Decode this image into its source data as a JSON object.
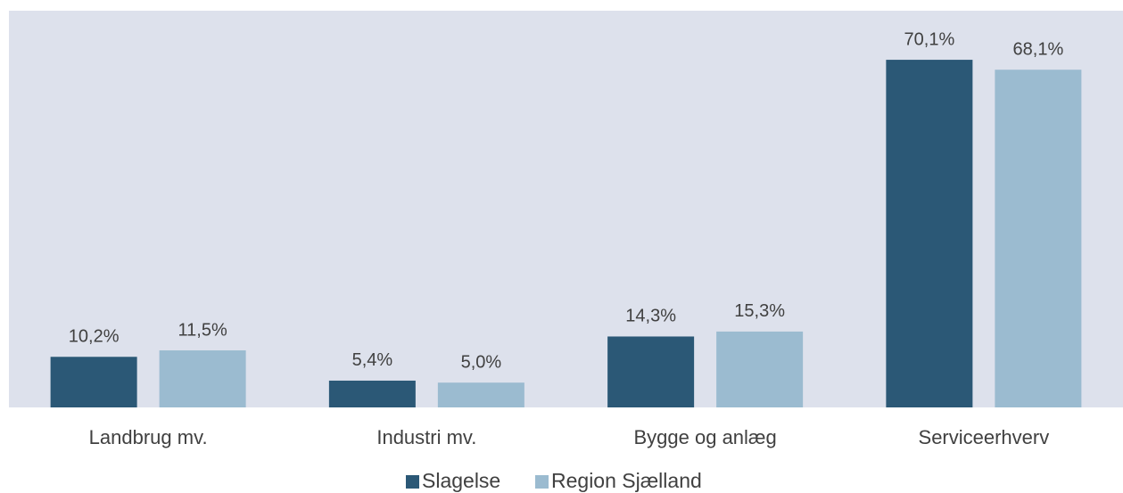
{
  "chart_data": {
    "type": "bar",
    "categories": [
      "Landbrug mv.",
      "Industri mv.",
      "Bygge og anlæg",
      "Serviceerhverv"
    ],
    "series": [
      {
        "name": "Slagelse",
        "color": "#2b5876",
        "values": [
          10.2,
          5.4,
          14.3,
          70.1
        ],
        "value_labels": [
          "10,2%",
          "5,4%",
          "14,3%",
          "70,1%"
        ]
      },
      {
        "name": "Region Sjælland",
        "color": "#9bbbd0",
        "values": [
          11.5,
          5.0,
          15.3,
          68.1
        ],
        "value_labels": [
          "11,5%",
          "5,0%",
          "15,3%",
          "68,1%"
        ]
      }
    ],
    "ylim": [
      0,
      80
    ],
    "legend": "bottom"
  }
}
